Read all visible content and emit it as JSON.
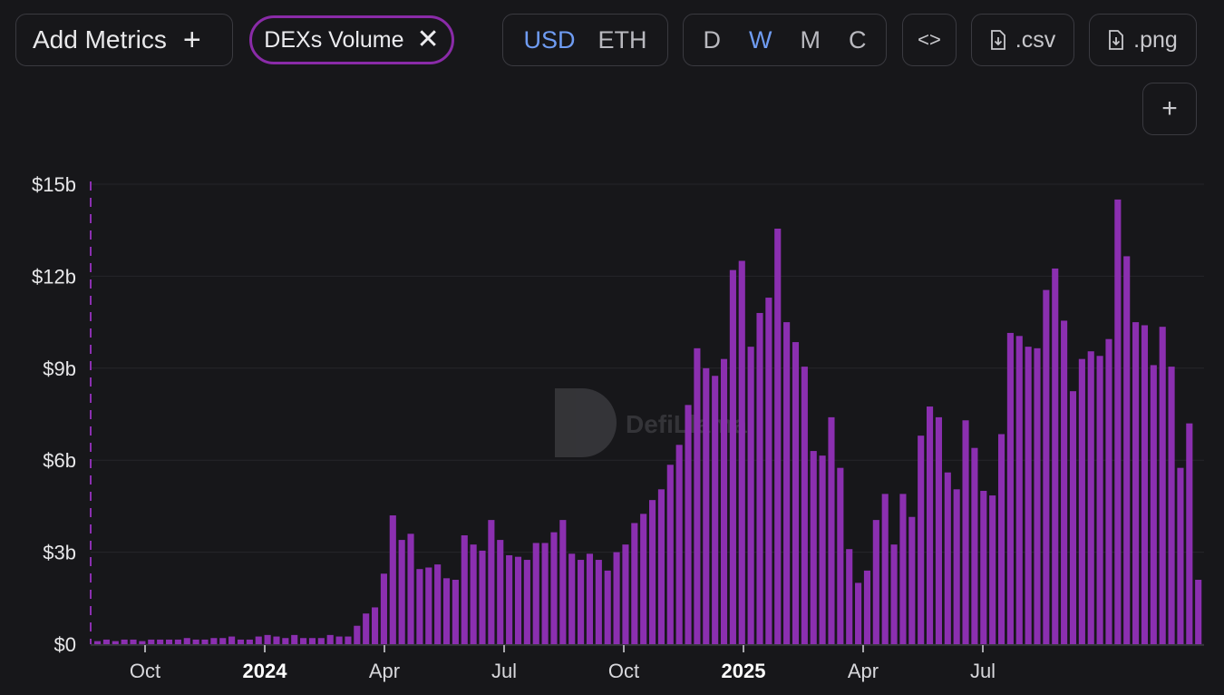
{
  "toolbar": {
    "add_metrics_label": "Add Metrics",
    "add_icon": "plus-icon",
    "metric_chip_label": "DEXs Volume",
    "metric_chip_close_icon": "close-icon",
    "currency_options": [
      "USD",
      "ETH"
    ],
    "currency_selected": "USD",
    "period_options": [
      "D",
      "W",
      "M",
      "C"
    ],
    "period_selected": "W",
    "embed_icon": "code-icon",
    "csv_label": ".csv",
    "png_label": ".png",
    "download_icon": "file-download-icon",
    "add_chart_icon": "plus-icon"
  },
  "watermark": "DefiLlama",
  "colors": {
    "background": "#17171a",
    "bar": "#8b2fb0",
    "accent_active": "#6f9cf2",
    "chip_border": "#8a2ba8"
  },
  "chart_data": {
    "type": "bar",
    "ylim": [
      0,
      15
    ],
    "y_ticks": [
      "$0",
      "$3b",
      "$6b",
      "$9b",
      "$12b",
      "$15b"
    ],
    "x_ticks": [
      {
        "label": "Oct",
        "bold": false
      },
      {
        "label": "2024",
        "bold": true
      },
      {
        "label": "Apr",
        "bold": false
      },
      {
        "label": "Jul",
        "bold": false
      },
      {
        "label": "Oct",
        "bold": false
      },
      {
        "label": "2025",
        "bold": true
      },
      {
        "label": "Apr",
        "bold": false
      },
      {
        "label": "Jul",
        "bold": false
      }
    ],
    "grid": true,
    "series": [
      {
        "values": [
          0.1,
          0.15,
          0.1,
          0.15,
          0.15,
          0.1,
          0.15,
          0.15,
          0.15,
          0.15,
          0.2,
          0.15,
          0.15,
          0.2,
          0.2,
          0.25,
          0.15,
          0.15,
          0.25,
          0.3,
          0.25,
          0.2,
          0.3,
          0.2,
          0.2,
          0.2,
          0.3,
          0.25,
          0.25,
          0.6,
          1.0,
          1.2,
          2.3,
          4.2,
          3.4,
          3.6,
          2.45,
          2.5,
          2.6,
          2.15,
          2.1,
          3.55,
          3.25,
          3.05,
          4.05,
          3.4,
          2.9,
          2.85,
          2.75,
          3.3,
          3.3,
          3.65,
          4.05,
          2.95,
          2.75,
          2.95,
          2.75,
          2.4,
          3.0,
          3.25,
          3.95,
          4.25,
          4.7,
          5.05,
          5.85,
          6.5,
          7.8,
          9.65,
          9.0,
          8.75,
          9.3,
          12.2,
          12.5,
          9.7,
          10.8,
          11.3,
          13.55,
          10.5,
          9.85,
          9.05,
          6.3,
          6.15,
          7.4,
          5.75,
          3.1,
          2.0,
          2.4,
          4.05,
          4.9,
          3.25,
          4.9,
          4.15,
          6.8,
          7.75,
          7.4,
          5.6,
          5.05,
          7.3,
          6.4,
          5.0,
          4.85,
          6.85,
          10.15,
          10.05,
          9.7,
          9.65,
          11.55,
          12.25,
          10.55,
          8.25,
          9.3,
          9.55,
          9.4,
          9.95,
          14.5,
          12.65,
          10.5,
          10.4,
          9.1,
          10.35,
          9.05,
          5.75,
          7.2,
          2.1
        ]
      }
    ]
  }
}
